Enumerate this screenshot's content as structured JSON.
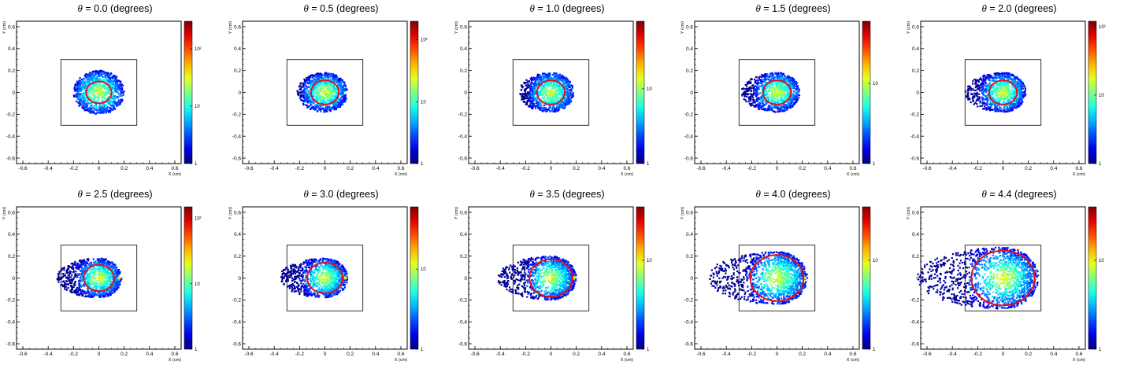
{
  "panel_title_symbol": "θ",
  "panel_title_unit": "(degrees)",
  "chart_data": [
    {
      "type": "heatmap",
      "theta": "0.0",
      "xlabel": "X (cm)",
      "ylabel": "Y (cm)",
      "xlim": [
        -0.65,
        0.65
      ],
      "ylim": [
        -0.65,
        0.65
      ],
      "xticks": [
        "-0.6",
        "-0.4",
        "-0.2",
        "0",
        "0.2",
        "0.4",
        "0.6"
      ],
      "yticks": [
        "-0.6",
        "-0.4",
        "-0.2",
        "0",
        "0.2",
        "0.4",
        "0.6"
      ],
      "box": {
        "x": [
          -0.3,
          0.3
        ],
        "y": [
          -0.3,
          0.3
        ]
      },
      "ring": {
        "cx": 0.0,
        "cy": 0.0,
        "r": 0.1
      },
      "spot": {
        "cx": 0.0,
        "r": 0.2,
        "front_reach": 0.2,
        "back_reach": 0.2
      },
      "colorbar": {
        "scale": "log",
        "range": [
          1,
          300
        ],
        "tick_labels": [
          "1",
          "10",
          "10²"
        ]
      }
    },
    {
      "type": "heatmap",
      "theta": "0.5",
      "xlabel": "X (cm)",
      "ylabel": "Y (cm)",
      "xlim": [
        -0.65,
        0.65
      ],
      "ylim": [
        -0.65,
        0.65
      ],
      "xticks": [
        "-0.6",
        "-0.4",
        "-0.2",
        "0",
        "0.2",
        "0.4",
        "0.6"
      ],
      "yticks": [
        "-0.6",
        "-0.4",
        "-0.2",
        "0",
        "0.2",
        "0.4",
        "0.6"
      ],
      "box": {
        "x": [
          -0.3,
          0.3
        ],
        "y": [
          -0.3,
          0.3
        ]
      },
      "ring": {
        "cx": 0.0,
        "cy": 0.0,
        "r": 0.11
      },
      "spot": {
        "cx": 0.0,
        "r": 0.18,
        "front_reach": 0.18,
        "back_reach": 0.22
      },
      "colorbar": {
        "scale": "log",
        "range": [
          1,
          200
        ],
        "tick_labels": [
          "1",
          "10",
          "10²"
        ]
      }
    },
    {
      "type": "heatmap",
      "theta": "1.0",
      "xlabel": "X (cm)",
      "ylabel": "Y (cm)",
      "xlim": [
        -0.65,
        0.65
      ],
      "ylim": [
        -0.65,
        0.65
      ],
      "xticks": [
        "-0.6",
        "-0.4",
        "-0.2",
        "0",
        "0.2",
        "0.4",
        "0.6"
      ],
      "yticks": [
        "-0.6",
        "-0.4",
        "-0.2",
        "0",
        "0.2",
        "0.4",
        "0.6"
      ],
      "box": {
        "x": [
          -0.3,
          0.3
        ],
        "y": [
          -0.3,
          0.3
        ]
      },
      "ring": {
        "cx": 0.0,
        "cy": 0.0,
        "r": 0.11
      },
      "spot": {
        "cx": 0.0,
        "r": 0.18,
        "front_reach": 0.18,
        "back_reach": 0.25
      },
      "colorbar": {
        "scale": "log",
        "range": [
          1,
          80
        ],
        "tick_labels": [
          "1",
          "10"
        ]
      }
    },
    {
      "type": "heatmap",
      "theta": "1.5",
      "xlabel": "X (cm)",
      "ylabel": "Y (cm)",
      "xlim": [
        -0.65,
        0.65
      ],
      "ylim": [
        -0.65,
        0.65
      ],
      "xticks": [
        "-0.6",
        "-0.4",
        "-0.2",
        "0",
        "0.2",
        "0.4",
        "0.6"
      ],
      "yticks": [
        "-0.6",
        "-0.4",
        "-0.2",
        "0",
        "0.2",
        "0.4",
        "0.6"
      ],
      "box": {
        "x": [
          -0.3,
          0.3
        ],
        "y": [
          -0.3,
          0.3
        ]
      },
      "ring": {
        "cx": 0.0,
        "cy": 0.0,
        "r": 0.11
      },
      "spot": {
        "cx": 0.0,
        "r": 0.18,
        "front_reach": 0.18,
        "back_reach": 0.28
      },
      "colorbar": {
        "scale": "log",
        "range": [
          1,
          60
        ],
        "tick_labels": [
          "1",
          "10"
        ]
      }
    },
    {
      "type": "heatmap",
      "theta": "2.0",
      "xlabel": "X (cm)",
      "ylabel": "Y (cm)",
      "xlim": [
        -0.65,
        0.65
      ],
      "ylim": [
        -0.65,
        0.65
      ],
      "xticks": [
        "-0.6",
        "-0.4",
        "-0.2",
        "0",
        "0.2",
        "0.4",
        "0.6"
      ],
      "yticks": [
        "-0.6",
        "-0.4",
        "-0.2",
        "0",
        "0.2",
        "0.4",
        "0.6"
      ],
      "box": {
        "x": [
          -0.3,
          0.3
        ],
        "y": [
          -0.3,
          0.3
        ]
      },
      "ring": {
        "cx": 0.0,
        "cy": 0.0,
        "r": 0.11
      },
      "spot": {
        "cx": 0.0,
        "r": 0.18,
        "front_reach": 0.18,
        "back_reach": 0.3
      },
      "colorbar": {
        "scale": "log",
        "range": [
          1,
          120
        ],
        "tick_labels": [
          "1",
          "10",
          "10²"
        ]
      }
    },
    {
      "type": "heatmap",
      "theta": "2.5",
      "xlabel": "X (cm)",
      "ylabel": "Y (cm)",
      "xlim": [
        -0.65,
        0.65
      ],
      "ylim": [
        -0.65,
        0.65
      ],
      "xticks": [
        "-0.6",
        "-0.4",
        "-0.2",
        "0",
        "0.2",
        "0.4",
        "0.6"
      ],
      "yticks": [
        "-0.6",
        "-0.4",
        "-0.2",
        "0",
        "0.2",
        "0.4",
        "0.6"
      ],
      "box": {
        "x": [
          -0.3,
          0.3
        ],
        "y": [
          -0.3,
          0.3
        ]
      },
      "ring": {
        "cx": 0.0,
        "cy": 0.0,
        "r": 0.12
      },
      "spot": {
        "cx": 0.0,
        "r": 0.18,
        "front_reach": 0.18,
        "back_reach": 0.33
      },
      "colorbar": {
        "scale": "log",
        "range": [
          1,
          150
        ],
        "tick_labels": [
          "1",
          "10",
          "10²"
        ]
      }
    },
    {
      "type": "heatmap",
      "theta": "3.0",
      "xlabel": "X (cm)",
      "ylabel": "Y (cm)",
      "xlim": [
        -0.65,
        0.65
      ],
      "ylim": [
        -0.65,
        0.65
      ],
      "xticks": [
        "-0.6",
        "-0.4",
        "-0.2",
        "0",
        "0.2",
        "0.4",
        "0.6"
      ],
      "yticks": [
        "-0.6",
        "-0.4",
        "-0.2",
        "0",
        "0.2",
        "0.4",
        "0.6"
      ],
      "box": {
        "x": [
          -0.3,
          0.3
        ],
        "y": [
          -0.3,
          0.3
        ]
      },
      "ring": {
        "cx": 0.0,
        "cy": 0.0,
        "r": 0.14
      },
      "spot": {
        "cx": 0.0,
        "r": 0.18,
        "front_reach": 0.18,
        "back_reach": 0.36
      },
      "colorbar": {
        "scale": "log",
        "range": [
          1,
          60
        ],
        "tick_labels": [
          "1",
          "10"
        ]
      }
    },
    {
      "type": "heatmap",
      "theta": "3.5",
      "xlabel": "X (cm)",
      "ylabel": "Y (cm)",
      "xlim": [
        -0.65,
        0.65
      ],
      "ylim": [
        -0.65,
        0.65
      ],
      "xticks": [
        "-0.6",
        "-0.4",
        "-0.2",
        "0",
        "0.2",
        "0.4",
        "0.6"
      ],
      "yticks": [
        "-0.6",
        "-0.4",
        "-0.2",
        "0",
        "0.2",
        "0.4",
        "0.6"
      ],
      "box": {
        "x": [
          -0.3,
          0.3
        ],
        "y": [
          -0.3,
          0.3
        ]
      },
      "ring": {
        "cx": 0.0,
        "cy": 0.0,
        "r": 0.17
      },
      "spot": {
        "cx": 0.0,
        "r": 0.2,
        "front_reach": 0.2,
        "back_reach": 0.42
      },
      "colorbar": {
        "scale": "log",
        "range": [
          1,
          40
        ],
        "tick_labels": [
          "1",
          "10"
        ]
      }
    },
    {
      "type": "heatmap",
      "theta": "4.0",
      "xlabel": "X (cm)",
      "ylabel": "Y (cm)",
      "xlim": [
        -0.65,
        0.65
      ],
      "ylim": [
        -0.65,
        0.65
      ],
      "xticks": [
        "-0.6",
        "-0.4",
        "-0.2",
        "0",
        "0.2",
        "0.4",
        "0.6"
      ],
      "yticks": [
        "-0.6",
        "-0.4",
        "-0.2",
        "0",
        "0.2",
        "0.4",
        "0.6"
      ],
      "box": {
        "x": [
          -0.3,
          0.3
        ],
        "y": [
          -0.3,
          0.3
        ]
      },
      "ring": {
        "cx": 0.0,
        "cy": 0.0,
        "r": 0.21
      },
      "spot": {
        "cx": 0.0,
        "r": 0.24,
        "front_reach": 0.24,
        "back_reach": 0.55
      },
      "colorbar": {
        "scale": "log",
        "range": [
          1,
          40
        ],
        "tick_labels": [
          "1",
          "10"
        ]
      }
    },
    {
      "type": "heatmap",
      "theta": "4.4",
      "xlabel": "X (cm)",
      "ylabel": "Y (cm)",
      "xlim": [
        -0.65,
        0.65
      ],
      "ylim": [
        -0.65,
        0.65
      ],
      "xticks": [
        "-0.6",
        "-0.4",
        "-0.2",
        "0",
        "0.2",
        "0.4",
        "0.6"
      ],
      "yticks": [
        "-0.6",
        "-0.4",
        "-0.2",
        "0",
        "0.2",
        "0.4",
        "0.6"
      ],
      "box": {
        "x": [
          -0.3,
          0.3
        ],
        "y": [
          -0.3,
          0.3
        ]
      },
      "ring": {
        "cx": 0.0,
        "cy": 0.0,
        "r": 0.25
      },
      "spot": {
        "cx": 0.0,
        "r": 0.28,
        "front_reach": 0.28,
        "back_reach": 0.68
      },
      "colorbar": {
        "scale": "log",
        "range": [
          1,
          40
        ],
        "tick_labels": [
          "1",
          "10"
        ]
      }
    }
  ]
}
